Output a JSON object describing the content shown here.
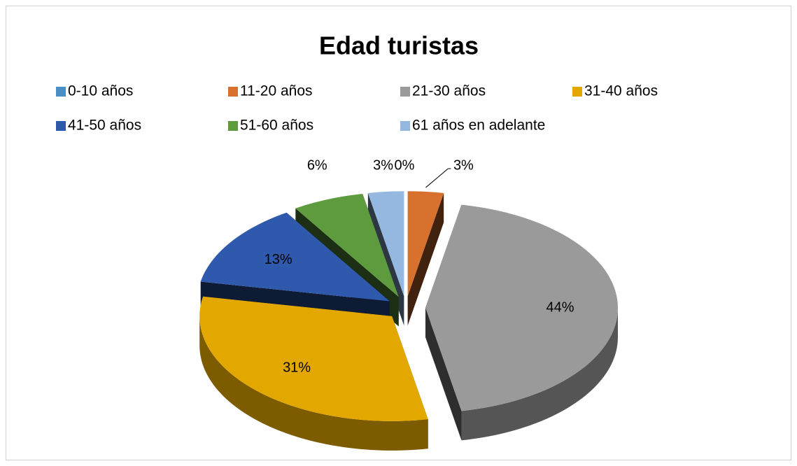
{
  "chart_data": {
    "type": "pie",
    "title": "Edad turistas",
    "categories": [
      "0-10 años",
      "11-20 años",
      "21-30 años",
      "31-40 años",
      "41-50 años",
      "51-60 años",
      "61 años en adelante"
    ],
    "values": [
      0,
      3,
      44,
      31,
      13,
      6,
      3
    ],
    "value_labels": [
      "0%",
      "3%",
      "44%",
      "31%",
      "13%",
      "6%",
      "3%"
    ],
    "colors": [
      "#4a8ec6",
      "#d9712e",
      "#9a9a9a",
      "#e3a800",
      "#2f59ad",
      "#5e9a3e",
      "#95b8e0"
    ],
    "legend": "top"
  }
}
